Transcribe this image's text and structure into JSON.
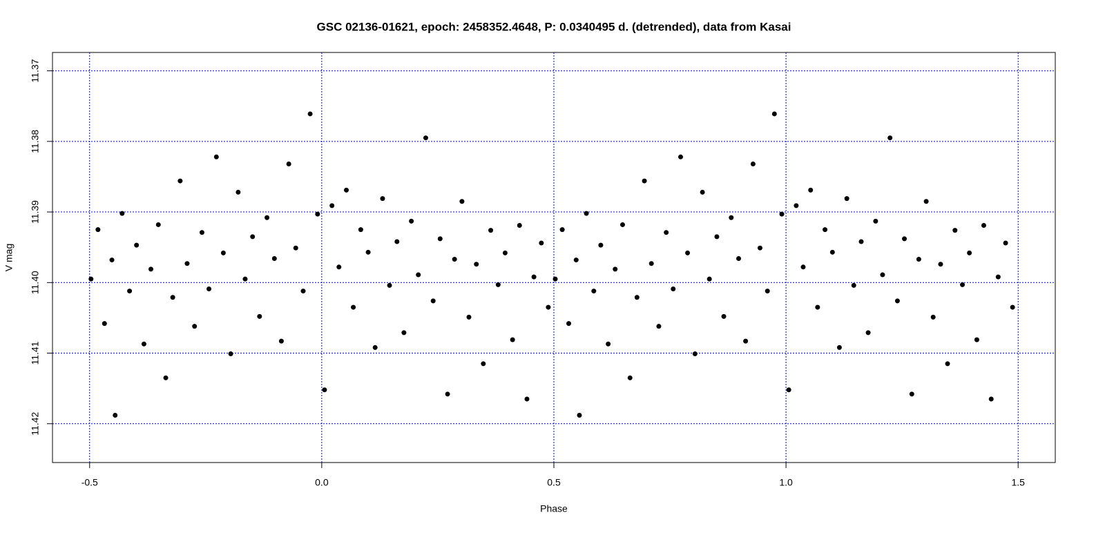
{
  "chart_data": {
    "type": "scatter",
    "title": "GSC 02136-01621, epoch: 2458352.4648, P: 0.0340495 d. (detrended), data from Kasai",
    "x_label": "Phase",
    "y_label": "V mag",
    "xlim": [
      -0.58,
      1.58
    ],
    "ylim": [
      11.4255,
      11.3674
    ],
    "xticks": [
      -0.5,
      {
        "value": 0,
        "label": "0.0"
      },
      0.5,
      {
        "value": 1,
        "label": "1.0"
      },
      1.5
    ],
    "yticks": [
      11.37,
      11.38,
      11.39,
      {
        "value": 11.4,
        "label": "11.40"
      },
      11.41,
      11.42
    ],
    "grid": true,
    "grid_color": "#0000cc",
    "series": [
      {
        "color": "#000000",
        "x": [
          -0.497,
          -0.482,
          -0.468,
          -0.452,
          -0.445,
          -0.43,
          -0.414,
          -0.399,
          -0.383,
          -0.368,
          -0.352,
          -0.336,
          -0.321,
          -0.305,
          -0.29,
          -0.274,
          -0.258,
          -0.243,
          -0.227,
          -0.212,
          -0.196,
          -0.18,
          -0.165,
          -0.149,
          -0.134,
          -0.118,
          -0.102,
          -0.087,
          -0.071,
          -0.056,
          -0.04,
          -0.025,
          -0.009,
          0.006,
          0.022,
          0.037,
          0.053,
          0.068,
          0.084,
          0.1,
          0.115,
          0.131,
          0.146,
          0.162,
          0.177,
          0.193,
          0.208,
          0.224,
          0.24,
          0.255,
          0.271,
          0.286,
          0.302,
          0.317,
          0.333,
          0.348,
          0.364,
          0.38,
          0.395,
          0.411,
          0.426,
          0.442,
          0.457,
          0.473,
          0.488,
          0.503,
          0.518,
          0.532,
          0.548,
          0.555,
          0.57,
          0.586,
          0.601,
          0.617,
          0.632,
          0.648,
          0.664,
          0.679,
          0.695,
          0.71,
          0.726,
          0.742,
          0.757,
          0.773,
          0.788,
          0.804,
          0.82,
          0.835,
          0.851,
          0.866,
          0.882,
          0.898,
          0.913,
          0.929,
          0.944,
          0.96,
          0.975,
          0.991,
          1.006,
          1.022,
          1.037,
          1.053,
          1.068,
          1.084,
          1.1,
          1.115,
          1.131,
          1.146,
          1.162,
          1.177,
          1.193,
          1.208,
          1.224,
          1.24,
          1.255,
          1.271,
          1.286,
          1.302,
          1.317,
          1.333,
          1.348,
          1.364,
          1.38,
          1.395,
          1.411,
          1.426,
          1.442,
          1.457,
          1.473,
          1.488
        ],
        "values": [
          11.3995,
          11.3925,
          11.4058,
          11.3968,
          11.4188,
          11.3902,
          11.4012,
          11.3947,
          11.4087,
          11.3981,
          11.3918,
          11.4135,
          11.4021,
          11.3856,
          11.3973,
          11.4062,
          11.3929,
          11.4009,
          11.3822,
          11.3958,
          11.4101,
          11.3872,
          11.3995,
          11.3935,
          11.4048,
          11.3908,
          11.3966,
          11.4083,
          11.3832,
          11.3951,
          11.4012,
          11.3761,
          11.3903,
          11.4152,
          11.3891,
          11.3978,
          11.3869,
          11.4035,
          11.3925,
          11.3957,
          11.4092,
          11.3881,
          11.4004,
          11.3942,
          11.4071,
          11.3913,
          11.3989,
          11.3795,
          11.4026,
          11.3938,
          11.4158,
          11.3967,
          11.3885,
          11.4049,
          11.3974,
          11.4115,
          11.3926,
          11.4003,
          11.3958,
          11.4081,
          11.3919,
          11.4165,
          11.3992,
          11.3944,
          11.4035,
          11.3995,
          11.3925,
          11.4058,
          11.3968,
          11.4188,
          11.3902,
          11.4012,
          11.3947,
          11.4087,
          11.3981,
          11.3918,
          11.4135,
          11.4021,
          11.3856,
          11.3973,
          11.4062,
          11.3929,
          11.4009,
          11.3822,
          11.3958,
          11.4101,
          11.3872,
          11.3995,
          11.3935,
          11.4048,
          11.3908,
          11.3966,
          11.4083,
          11.3832,
          11.3951,
          11.4012,
          11.3761,
          11.3903,
          11.4152,
          11.3891,
          11.3978,
          11.3869,
          11.4035,
          11.3925,
          11.3957,
          11.4092,
          11.3881,
          11.4004,
          11.3942,
          11.4071,
          11.3913,
          11.3989,
          11.3795,
          11.4026,
          11.3938,
          11.4158,
          11.3967,
          11.3885,
          11.4049,
          11.3974,
          11.4115,
          11.3926,
          11.4003,
          11.3958,
          11.4081,
          11.3919,
          11.4165,
          11.3992,
          11.3944,
          11.4035
        ]
      }
    ]
  }
}
